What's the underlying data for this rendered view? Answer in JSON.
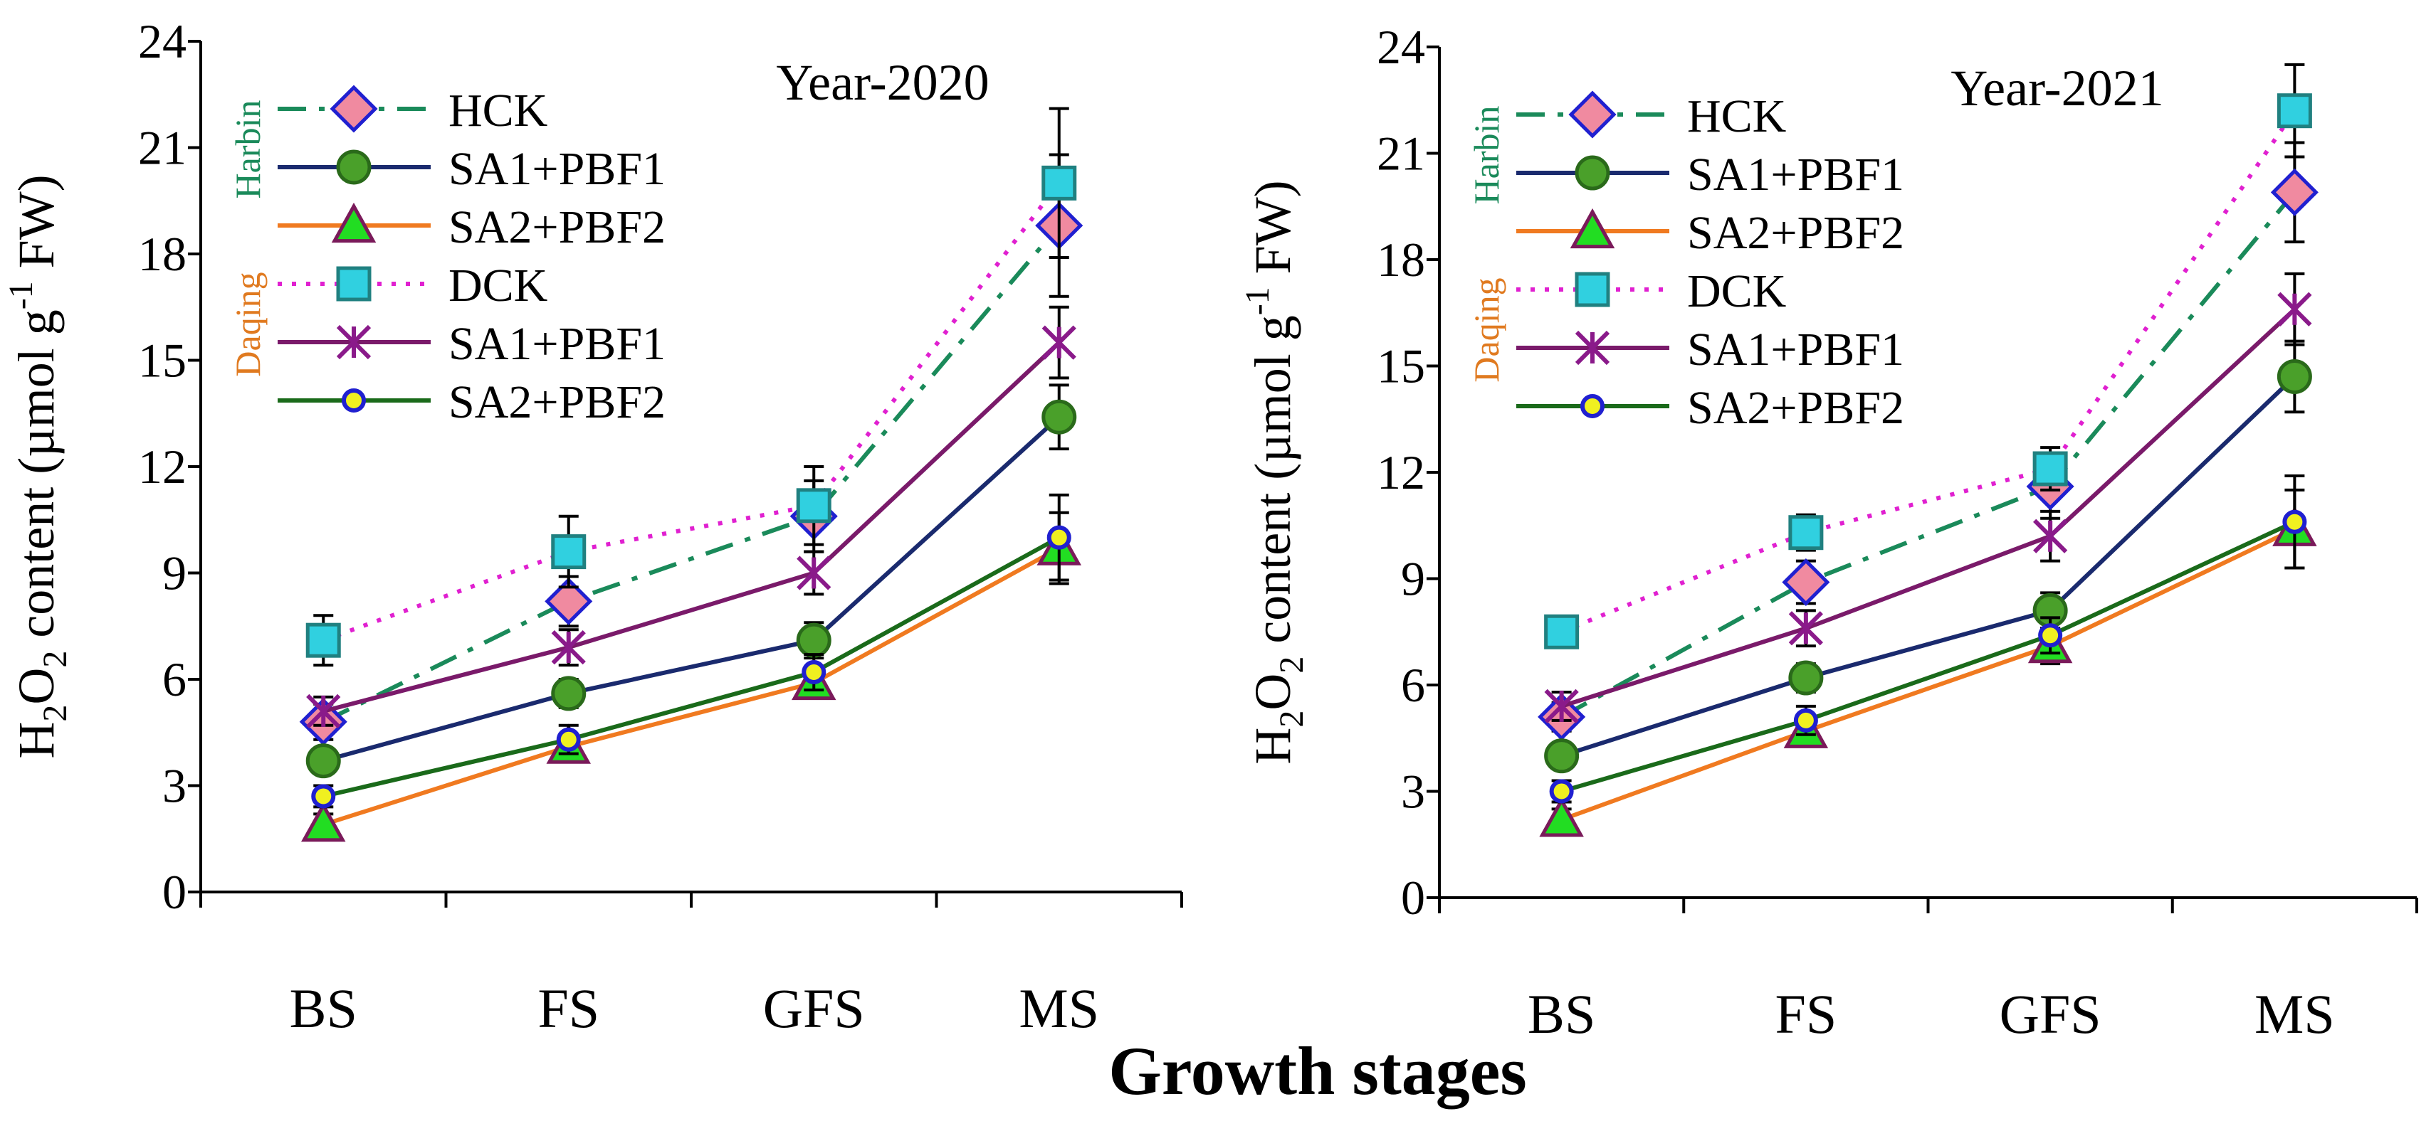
{
  "figure": {
    "x_axis_title": "Growth stages"
  },
  "legend": {
    "site_harbin": "Harbin",
    "site_daqing": "Daqing",
    "entries": [
      "HCK",
      "SA1+PBF1",
      "SA2+PBF2",
      "DCK",
      "SA1+PBF1",
      "SA2+PBF2"
    ]
  },
  "colors": {
    "HCK_line": "#1a8a5a",
    "HCK_marker": "#f08aa0",
    "HCK_marker_edge": "#2020d0",
    "SA1PBF1_H_line": "#1a2a6e",
    "SA1PBF1_H_marker": "#4aa02a",
    "SA1PBF1_H_marker_edge": "#2a6a1a",
    "SA2PBF2_H_line": "#f07a20",
    "SA2PBF2_H_marker": "#22dd22",
    "SA2PBF2_H_marker_edge": "#7a1a5a",
    "DCK_line": "#e020d0",
    "DCK_marker": "#30d0e0",
    "DCK_marker_edge": "#208080",
    "SA1PBF1_D_line": "#7a1a6a",
    "SA1PBF1_D_marker": "#8a1a8a",
    "SA2PBF2_D_line": "#1a6a1a",
    "SA2PBF2_D_marker": "#f0f020",
    "SA2PBF2_D_marker_edge": "#2020d0",
    "site_harbin": "#1a8a5a",
    "site_daqing": "#e07a20"
  },
  "chart_data": [
    {
      "type": "line",
      "title": "Year-2020",
      "ylabel": "H2O2 content (µmol g-1 FW)",
      "ylabel_parts": {
        "a": "H",
        "b": "2",
        "c": "O",
        "d": "2",
        "e": " content (µmol g",
        "f": "-1",
        "g": " FW)"
      },
      "xlabel": "Growth stages",
      "categories": [
        "BS",
        "FS",
        "GFS",
        "MS"
      ],
      "ylim": [
        0,
        24
      ],
      "yticks": [
        "0",
        "3",
        "6",
        "9",
        "12",
        "15",
        "18",
        "21",
        "24"
      ],
      "series": [
        {
          "name": "HCK",
          "site": "Harbin",
          "values": [
            4.8,
            8.2,
            10.6,
            18.8
          ],
          "errors": [
            0.5,
            0.7,
            1.0,
            2.0
          ]
        },
        {
          "name": "SA1+PBF1",
          "site": "Harbin",
          "values": [
            3.7,
            5.6,
            7.1,
            13.4
          ],
          "errors": [
            0.3,
            0.4,
            0.5,
            0.9
          ]
        },
        {
          "name": "SA2+PBF2",
          "site": "Harbin",
          "values": [
            1.9,
            4.1,
            5.9,
            9.7
          ],
          "errors": [
            0.3,
            0.3,
            0.4,
            1.0
          ]
        },
        {
          "name": "DCK",
          "site": "Daqing",
          "values": [
            7.1,
            9.6,
            10.9,
            20.0
          ],
          "errors": [
            0.7,
            1.0,
            1.1,
            2.1
          ]
        },
        {
          "name": "SA1+PBF1",
          "site": "Daqing",
          "values": [
            5.1,
            6.9,
            9.0,
            15.5
          ],
          "errors": [
            0.4,
            0.5,
            0.6,
            1.0
          ]
        },
        {
          "name": "SA2+PBF2",
          "site": "Daqing",
          "values": [
            2.7,
            4.3,
            6.2,
            10.0
          ],
          "errors": [
            0.3,
            0.4,
            0.5,
            1.2
          ]
        }
      ]
    },
    {
      "type": "line",
      "title": "Year-2021",
      "ylabel": "H2O2 content (µmol g-1 FW)",
      "ylabel_parts": {
        "a": "H",
        "b": "2",
        "c": "O",
        "d": "2",
        "e": " content (µmol g",
        "f": "-1",
        "g": " FW)"
      },
      "xlabel": "Growth stages",
      "categories": [
        "BS",
        "FS",
        "GFS",
        "MS"
      ],
      "ylim": [
        0,
        24
      ],
      "yticks": [
        "0",
        "3",
        "6",
        "9",
        "12",
        "15",
        "18",
        "21",
        "24"
      ],
      "series": [
        {
          "name": "HCK",
          "site": "Harbin",
          "values": [
            5.1,
            8.9,
            11.6,
            19.9
          ],
          "errors": [
            0.4,
            0.6,
            0.9,
            1.4
          ]
        },
        {
          "name": "SA1+PBF1",
          "site": "Harbin",
          "values": [
            4.0,
            6.2,
            8.1,
            14.7
          ],
          "errors": [
            0.3,
            0.4,
            0.5,
            1.0
          ]
        },
        {
          "name": "SA2+PBF2",
          "site": "Harbin",
          "values": [
            2.2,
            4.7,
            7.1,
            10.4
          ],
          "errors": [
            0.3,
            0.3,
            0.5,
            1.1
          ]
        },
        {
          "name": "DCK",
          "site": "Daqing",
          "values": [
            7.5,
            10.3,
            12.1,
            22.2
          ],
          "errors": [
            0.3,
            0.5,
            0.6,
            1.3
          ]
        },
        {
          "name": "SA1+PBF1",
          "site": "Daqing",
          "values": [
            5.4,
            7.6,
            10.2,
            16.6
          ],
          "errors": [
            0.4,
            0.5,
            0.7,
            1.0
          ]
        },
        {
          "name": "SA2+PBF2",
          "site": "Daqing",
          "values": [
            3.0,
            5.0,
            7.4,
            10.6
          ],
          "errors": [
            0.3,
            0.4,
            0.5,
            1.3
          ]
        }
      ]
    }
  ]
}
